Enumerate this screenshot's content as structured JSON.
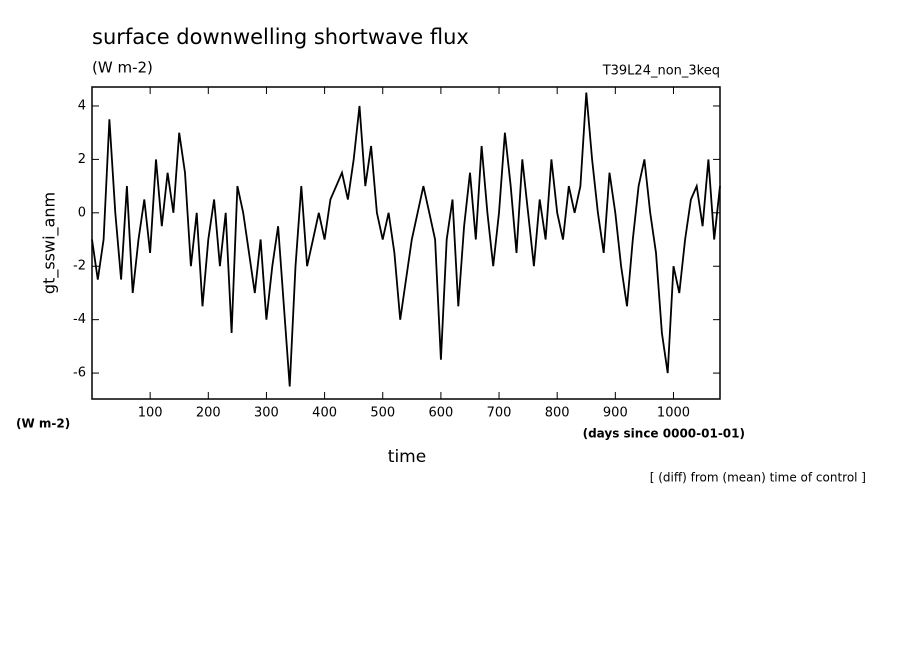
{
  "chart_data": {
    "type": "line",
    "title": "surface downwelling shortwave flux",
    "subtitle": "(W m-2)",
    "run_label": "T39L24_non_3keq",
    "y_label": "gt_sswi_anm",
    "y_units": "(W m-2)",
    "x_label": "time",
    "x_units": "(days since 0000-01-01)",
    "note": "[ (diff) from (mean) time of control ]",
    "x": [
      0,
      10,
      20,
      30,
      40,
      50,
      60,
      70,
      80,
      90,
      100,
      110,
      120,
      130,
      140,
      150,
      160,
      170,
      180,
      190,
      200,
      210,
      220,
      230,
      240,
      250,
      260,
      270,
      280,
      290,
      300,
      310,
      320,
      330,
      340,
      350,
      360,
      370,
      380,
      390,
      400,
      410,
      420,
      430,
      440,
      450,
      460,
      470,
      480,
      490,
      500,
      510,
      520,
      530,
      540,
      550,
      560,
      570,
      580,
      590,
      600,
      610,
      620,
      630,
      640,
      650,
      660,
      670,
      680,
      690,
      700,
      710,
      720,
      730,
      740,
      750,
      760,
      770,
      780,
      790,
      800,
      810,
      820,
      830,
      840,
      850,
      860,
      870,
      880,
      890,
      900,
      910,
      920,
      930,
      940,
      950,
      960,
      970,
      980,
      990,
      1000,
      1010,
      1020,
      1030,
      1040,
      1050,
      1060,
      1070,
      1080
    ],
    "series": [
      {
        "color": "#000000",
        "values": [
          -1,
          -2.5,
          -1,
          3.5,
          0,
          -2.5,
          1,
          -3,
          -1,
          0.5,
          -1.5,
          2,
          -0.5,
          1.5,
          0,
          3,
          1.5,
          -2,
          0,
          -3.5,
          -1,
          0.5,
          -2,
          0,
          -4.5,
          1,
          0,
          -1.5,
          -3,
          -1,
          -4,
          -2,
          -0.5,
          -3.5,
          -6.5,
          -2,
          1,
          -2,
          -1,
          0,
          -1,
          0.5,
          1,
          1.5,
          0.5,
          2,
          4,
          1,
          2.5,
          0,
          -1,
          0,
          -1.5,
          -4,
          -2.5,
          -1,
          0,
          1,
          0,
          -1,
          -5.5,
          -1,
          0.5,
          -3.5,
          -0.5,
          1.5,
          -1,
          2.5,
          0,
          -2,
          0,
          3,
          1,
          -1.5,
          2,
          0,
          -2,
          0.5,
          -1,
          2,
          0,
          -1,
          1,
          0,
          1,
          4.5,
          2,
          0,
          -1.5,
          1.5,
          0,
          -2,
          -3.5,
          -1,
          1,
          2,
          0,
          -1.5,
          -4.5,
          -6,
          -2,
          -3,
          -1,
          0.5,
          1,
          -0.5,
          2,
          -1,
          1
        ]
      }
    ],
    "xlim": [
      0,
      1080
    ],
    "ylim": [
      -6.97,
      4.71
    ],
    "xticks": [
      100,
      200,
      300,
      400,
      500,
      600,
      700,
      800,
      900,
      1000
    ],
    "yticks": [
      -6,
      -4,
      -2,
      0,
      2,
      4
    ]
  }
}
